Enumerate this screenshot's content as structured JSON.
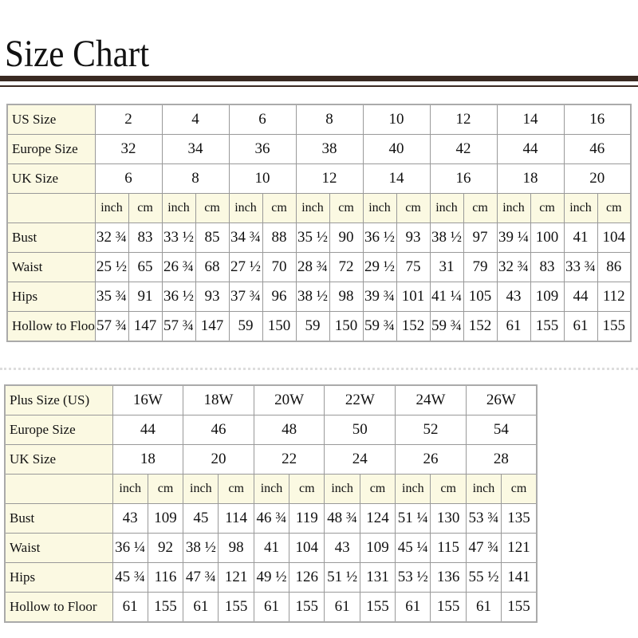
{
  "title": "Size Chart",
  "tables": [
    {
      "size_rows": [
        {
          "label": "US Size",
          "values": [
            "2",
            "4",
            "6",
            "8",
            "10",
            "12",
            "14",
            "16"
          ]
        },
        {
          "label": "Europe Size",
          "values": [
            "32",
            "34",
            "36",
            "38",
            "40",
            "42",
            "44",
            "46"
          ]
        },
        {
          "label": "UK Size",
          "values": [
            "6",
            "8",
            "10",
            "12",
            "14",
            "16",
            "18",
            "20"
          ]
        }
      ],
      "units": [
        "inch",
        "cm",
        "inch",
        "cm",
        "inch",
        "cm",
        "inch",
        "cm",
        "inch",
        "cm",
        "inch",
        "cm",
        "inch",
        "cm",
        "inch",
        "cm"
      ],
      "measure_rows": [
        {
          "label": "Bust",
          "values": [
            "32 ¾",
            "83",
            "33 ½",
            "85",
            "34 ¾",
            "88",
            "35 ½",
            "90",
            "36 ½",
            "93",
            "38 ½",
            "97",
            "39 ¼",
            "100",
            "41",
            "104"
          ]
        },
        {
          "label": "Waist",
          "values": [
            "25 ½",
            "65",
            "26 ¾",
            "68",
            "27 ½",
            "70",
            "28 ¾",
            "72",
            "29 ½",
            "75",
            "31",
            "79",
            "32 ¾",
            "83",
            "33 ¾",
            "86"
          ]
        },
        {
          "label": "Hips",
          "values": [
            "35 ¾",
            "91",
            "36 ½",
            "93",
            "37 ¾",
            "96",
            "38 ½",
            "98",
            "39 ¾",
            "101",
            "41 ¼",
            "105",
            "43",
            "109",
            "44",
            "112"
          ]
        },
        {
          "label": "Hollow to Floor",
          "values": [
            "57 ¾",
            "147",
            "57 ¾",
            "147",
            "59",
            "150",
            "59",
            "150",
            "59 ¾",
            "152",
            "59 ¾",
            "152",
            "61",
            "155",
            "61",
            "155"
          ]
        }
      ]
    },
    {
      "size_rows": [
        {
          "label": "Plus Size (US)",
          "values": [
            "16W",
            "18W",
            "20W",
            "22W",
            "24W",
            "26W"
          ]
        },
        {
          "label": "Europe Size",
          "values": [
            "44",
            "46",
            "48",
            "50",
            "52",
            "54"
          ]
        },
        {
          "label": "UK Size",
          "values": [
            "18",
            "20",
            "22",
            "24",
            "26",
            "28"
          ]
        }
      ],
      "units": [
        "inch",
        "cm",
        "inch",
        "cm",
        "inch",
        "cm",
        "inch",
        "cm",
        "inch",
        "cm",
        "inch",
        "cm"
      ],
      "measure_rows": [
        {
          "label": "Bust",
          "values": [
            "43",
            "109",
            "45",
            "114",
            "46 ¾",
            "119",
            "48 ¾",
            "124",
            "51 ¼",
            "130",
            "53 ¾",
            "135"
          ]
        },
        {
          "label": "Waist",
          "values": [
            "36 ¼",
            "92",
            "38 ½",
            "98",
            "41",
            "104",
            "43",
            "109",
            "45 ¼",
            "115",
            "47 ¾",
            "121"
          ]
        },
        {
          "label": "Hips",
          "values": [
            "45 ¾",
            "116",
            "47 ¾",
            "121",
            "49 ½",
            "126",
            "51 ½",
            "131",
            "53 ½",
            "136",
            "55 ½",
            "141"
          ]
        },
        {
          "label": "Hollow to Floor",
          "values": [
            "61",
            "155",
            "61",
            "155",
            "61",
            "155",
            "61",
            "155",
            "61",
            "155",
            "61",
            "155"
          ]
        }
      ]
    }
  ]
}
